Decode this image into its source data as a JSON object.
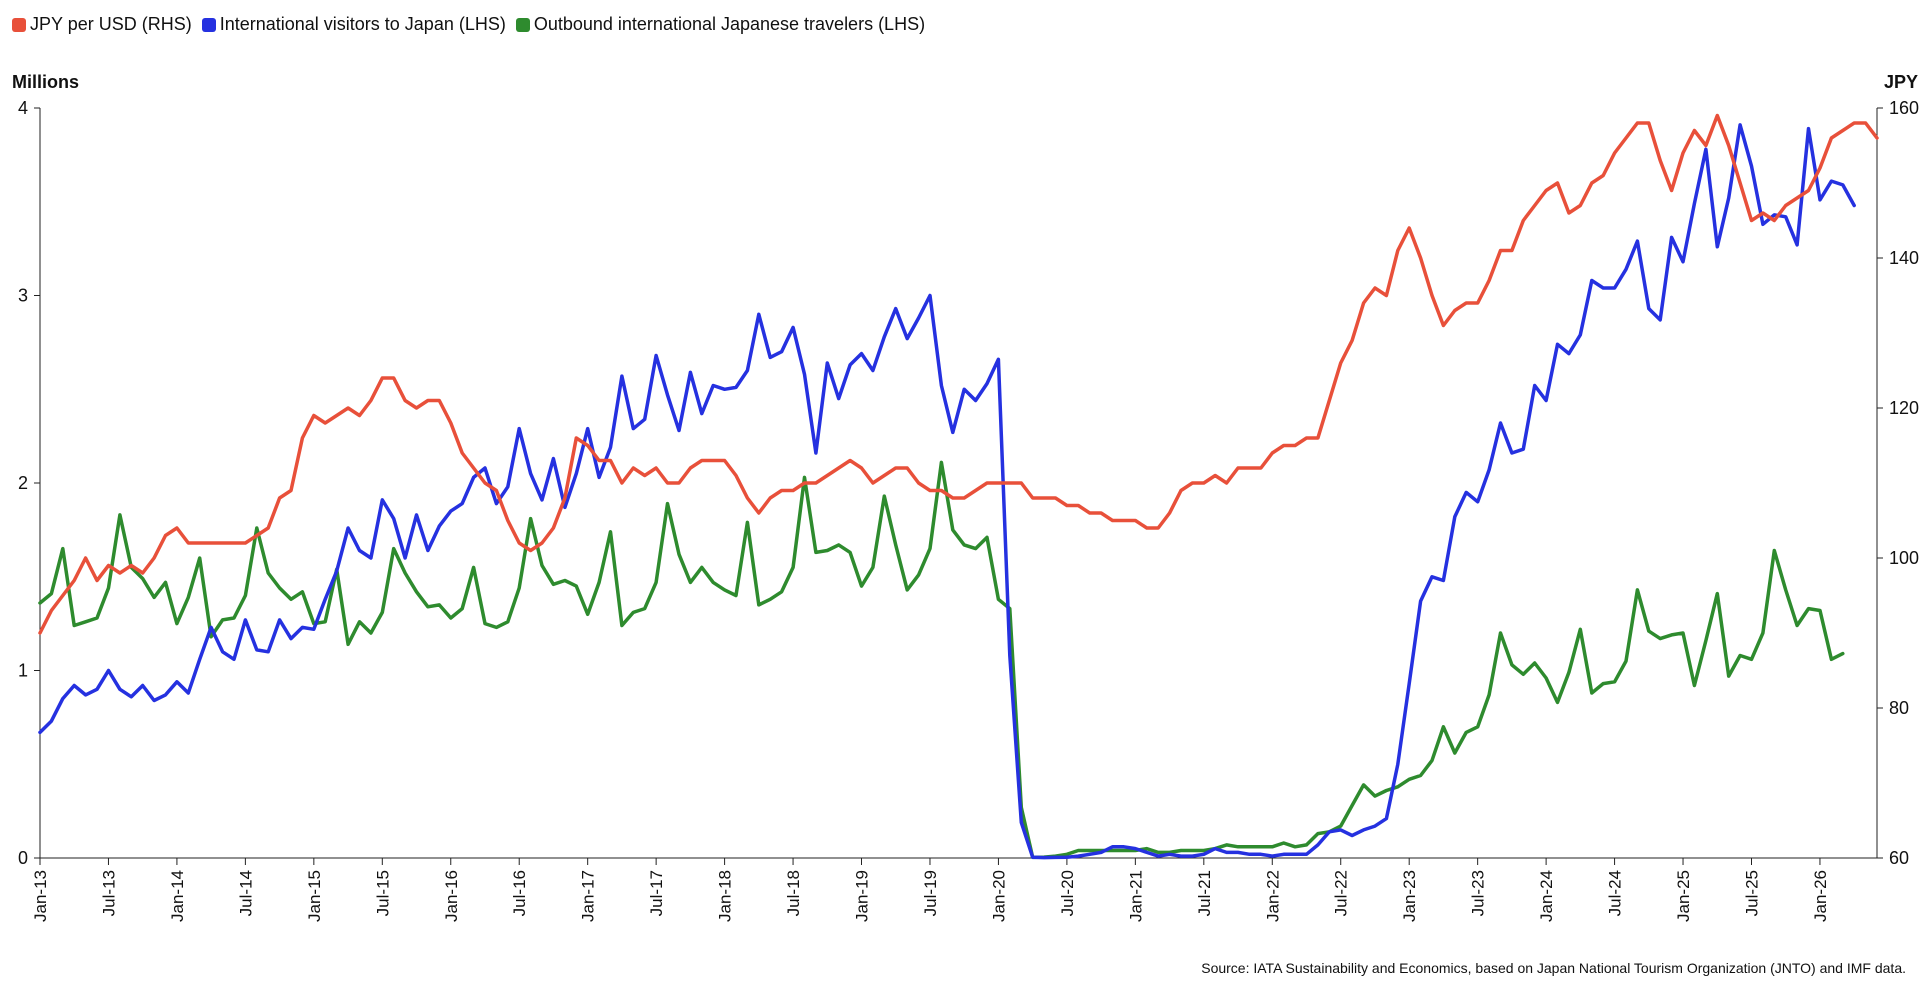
{
  "legend": [
    {
      "label": "JPY per USD (RHS)",
      "color": "#e8503a"
    },
    {
      "label": "International visitors to Japan (LHS)",
      "color": "#2531e0"
    },
    {
      "label": "Outbound international Japanese travelers (LHS)",
      "color": "#2e8b2e"
    }
  ],
  "axis": {
    "left_unit": "Millions",
    "right_unit": "JPY"
  },
  "source": "Source: IATA Sustainability and Economics, based on Japan National Tourism Organization (JNTO) and IMF data.",
  "chart_data": {
    "type": "line",
    "x_start": "Jan-13",
    "x_end": "Feb-26",
    "x_ticks": [
      "Jan-13",
      "Jul-13",
      "Jan-14",
      "Jul-14",
      "Jan-15",
      "Jul-15",
      "Jan-16",
      "Jul-16",
      "Jan-17",
      "Jul-17",
      "Jan-18",
      "Jul-18",
      "Jan-19",
      "Jul-19",
      "Jan-20",
      "Jul-20",
      "Jan-21",
      "Jul-21",
      "Jan-22",
      "Jul-22",
      "Jan-23",
      "Jul-23",
      "Jan-24",
      "Jul-24",
      "Jan-25",
      "Jul-25",
      "Jan-26"
    ],
    "y_left": {
      "label": "Millions",
      "range": [
        0,
        4
      ],
      "ticks": [
        "0",
        "1",
        "2",
        "3",
        "4"
      ]
    },
    "y_right": {
      "label": "JPY",
      "range": [
        60,
        160
      ],
      "ticks": [
        "60",
        "80",
        "100",
        "120",
        "140",
        "160"
      ]
    },
    "series": [
      {
        "name": "JPY per USD (RHS)",
        "axis": "right",
        "color": "#e8503a",
        "values": [
          90,
          93,
          95,
          97,
          100,
          97,
          99,
          98,
          99,
          98,
          100,
          103,
          104,
          102,
          102,
          102,
          102,
          102,
          102,
          103,
          104,
          108,
          109,
          116,
          119,
          118,
          119,
          120,
          119,
          121,
          124,
          124,
          121,
          120,
          121,
          121,
          118,
          114,
          112,
          110,
          109,
          105,
          102,
          101,
          102,
          104,
          108,
          116,
          115,
          113,
          113,
          110,
          112,
          111,
          112,
          110,
          110,
          112,
          113,
          113,
          113,
          111,
          108,
          106,
          108,
          109,
          109,
          110,
          110,
          111,
          112,
          113,
          112,
          110,
          111,
          112,
          112,
          110,
          109,
          109,
          108,
          108,
          109,
          110,
          110,
          110,
          110,
          108,
          108,
          108,
          107,
          107,
          106,
          106,
          105,
          105,
          105,
          104,
          104,
          106,
          109,
          110,
          110,
          111,
          110,
          112,
          112,
          112,
          114,
          115,
          115,
          116,
          116,
          121,
          126,
          129,
          134,
          136,
          135,
          141,
          144,
          140,
          135,
          131,
          133,
          134,
          134,
          137,
          141,
          141,
          145,
          147,
          149,
          150,
          146,
          147,
          150,
          151,
          154,
          156,
          158,
          158,
          153,
          149,
          154,
          157,
          155,
          159,
          155,
          150,
          145,
          146,
          145,
          147,
          148,
          149,
          152,
          156,
          157,
          158,
          158,
          156
        ]
      },
      {
        "name": "International visitors to Japan (LHS)",
        "axis": "left",
        "color": "#2531e0",
        "values": [
          0.67,
          0.73,
          0.85,
          0.92,
          0.87,
          0.9,
          1.0,
          0.9,
          0.86,
          0.92,
          0.84,
          0.87,
          0.94,
          0.88,
          1.06,
          1.23,
          1.1,
          1.06,
          1.27,
          1.11,
          1.1,
          1.27,
          1.17,
          1.23,
          1.22,
          1.38,
          1.53,
          1.76,
          1.64,
          1.6,
          1.91,
          1.81,
          1.6,
          1.83,
          1.64,
          1.77,
          1.85,
          1.89,
          2.03,
          2.08,
          1.89,
          1.98,
          2.29,
          2.05,
          1.91,
          2.13,
          1.87,
          2.05,
          2.29,
          2.03,
          2.19,
          2.57,
          2.29,
          2.34,
          2.68,
          2.47,
          2.28,
          2.59,
          2.37,
          2.52,
          2.5,
          2.51,
          2.6,
          2.9,
          2.67,
          2.7,
          2.83,
          2.58,
          2.16,
          2.64,
          2.45,
          2.63,
          2.69,
          2.6,
          2.78,
          2.93,
          2.77,
          2.88,
          3.0,
          2.52,
          2.27,
          2.5,
          2.44,
          2.53,
          2.66,
          1.08,
          0.19,
          0.004,
          0.002,
          0.003,
          0.004,
          0.01,
          0.02,
          0.03,
          0.06,
          0.06,
          0.05,
          0.03,
          0.01,
          0.02,
          0.01,
          0.01,
          0.02,
          0.05,
          0.03,
          0.03,
          0.02,
          0.02,
          0.01,
          0.02,
          0.02,
          0.02,
          0.07,
          0.14,
          0.15,
          0.12,
          0.15,
          0.17,
          0.21,
          0.5,
          0.93,
          1.37,
          1.5,
          1.48,
          1.82,
          1.95,
          1.9,
          2.07,
          2.32,
          2.16,
          2.18,
          2.52,
          2.44,
          2.74,
          2.69,
          2.79,
          3.08,
          3.04,
          3.04,
          3.14,
          3.29,
          2.93,
          2.87,
          3.31,
          3.18,
          3.49,
          3.78,
          3.26,
          3.52,
          3.91,
          3.69,
          3.38,
          3.43,
          3.42,
          3.27,
          3.89,
          3.51,
          3.61,
          3.59,
          3.48
        ]
      },
      {
        "name": "Outbound international Japanese travelers (LHS)",
        "axis": "left",
        "color": "#2e8b2e",
        "values": [
          1.36,
          1.41,
          1.65,
          1.24,
          1.26,
          1.28,
          1.44,
          1.83,
          1.55,
          1.49,
          1.39,
          1.47,
          1.25,
          1.39,
          1.6,
          1.18,
          1.27,
          1.28,
          1.4,
          1.76,
          1.52,
          1.44,
          1.38,
          1.42,
          1.25,
          1.26,
          1.54,
          1.14,
          1.26,
          1.2,
          1.31,
          1.65,
          1.52,
          1.42,
          1.34,
          1.35,
          1.28,
          1.33,
          1.55,
          1.25,
          1.23,
          1.26,
          1.44,
          1.81,
          1.56,
          1.46,
          1.48,
          1.45,
          1.3,
          1.47,
          1.74,
          1.24,
          1.31,
          1.33,
          1.47,
          1.89,
          1.62,
          1.47,
          1.55,
          1.47,
          1.43,
          1.4,
          1.79,
          1.35,
          1.38,
          1.42,
          1.55,
          2.03,
          1.63,
          1.64,
          1.67,
          1.63,
          1.45,
          1.55,
          1.93,
          1.67,
          1.43,
          1.51,
          1.65,
          2.11,
          1.75,
          1.67,
          1.65,
          1.71,
          1.38,
          1.33,
          0.27,
          0.003,
          0.005,
          0.01,
          0.02,
          0.04,
          0.04,
          0.04,
          0.04,
          0.04,
          0.04,
          0.05,
          0.03,
          0.03,
          0.04,
          0.04,
          0.04,
          0.05,
          0.07,
          0.06,
          0.06,
          0.06,
          0.06,
          0.08,
          0.06,
          0.07,
          0.13,
          0.14,
          0.17,
          0.28,
          0.39,
          0.33,
          0.36,
          0.38,
          0.42,
          0.44,
          0.52,
          0.7,
          0.56,
          0.67,
          0.7,
          0.87,
          1.2,
          1.03,
          0.98,
          1.04,
          0.96,
          0.83,
          0.99,
          1.22,
          0.88,
          0.93,
          0.94,
          1.05,
          1.43,
          1.21,
          1.17,
          1.19,
          1.2,
          0.92,
          1.16,
          1.41,
          0.97,
          1.08,
          1.06,
          1.2,
          1.64,
          1.43,
          1.24,
          1.33,
          1.32,
          1.06,
          1.09
        ]
      }
    ]
  }
}
